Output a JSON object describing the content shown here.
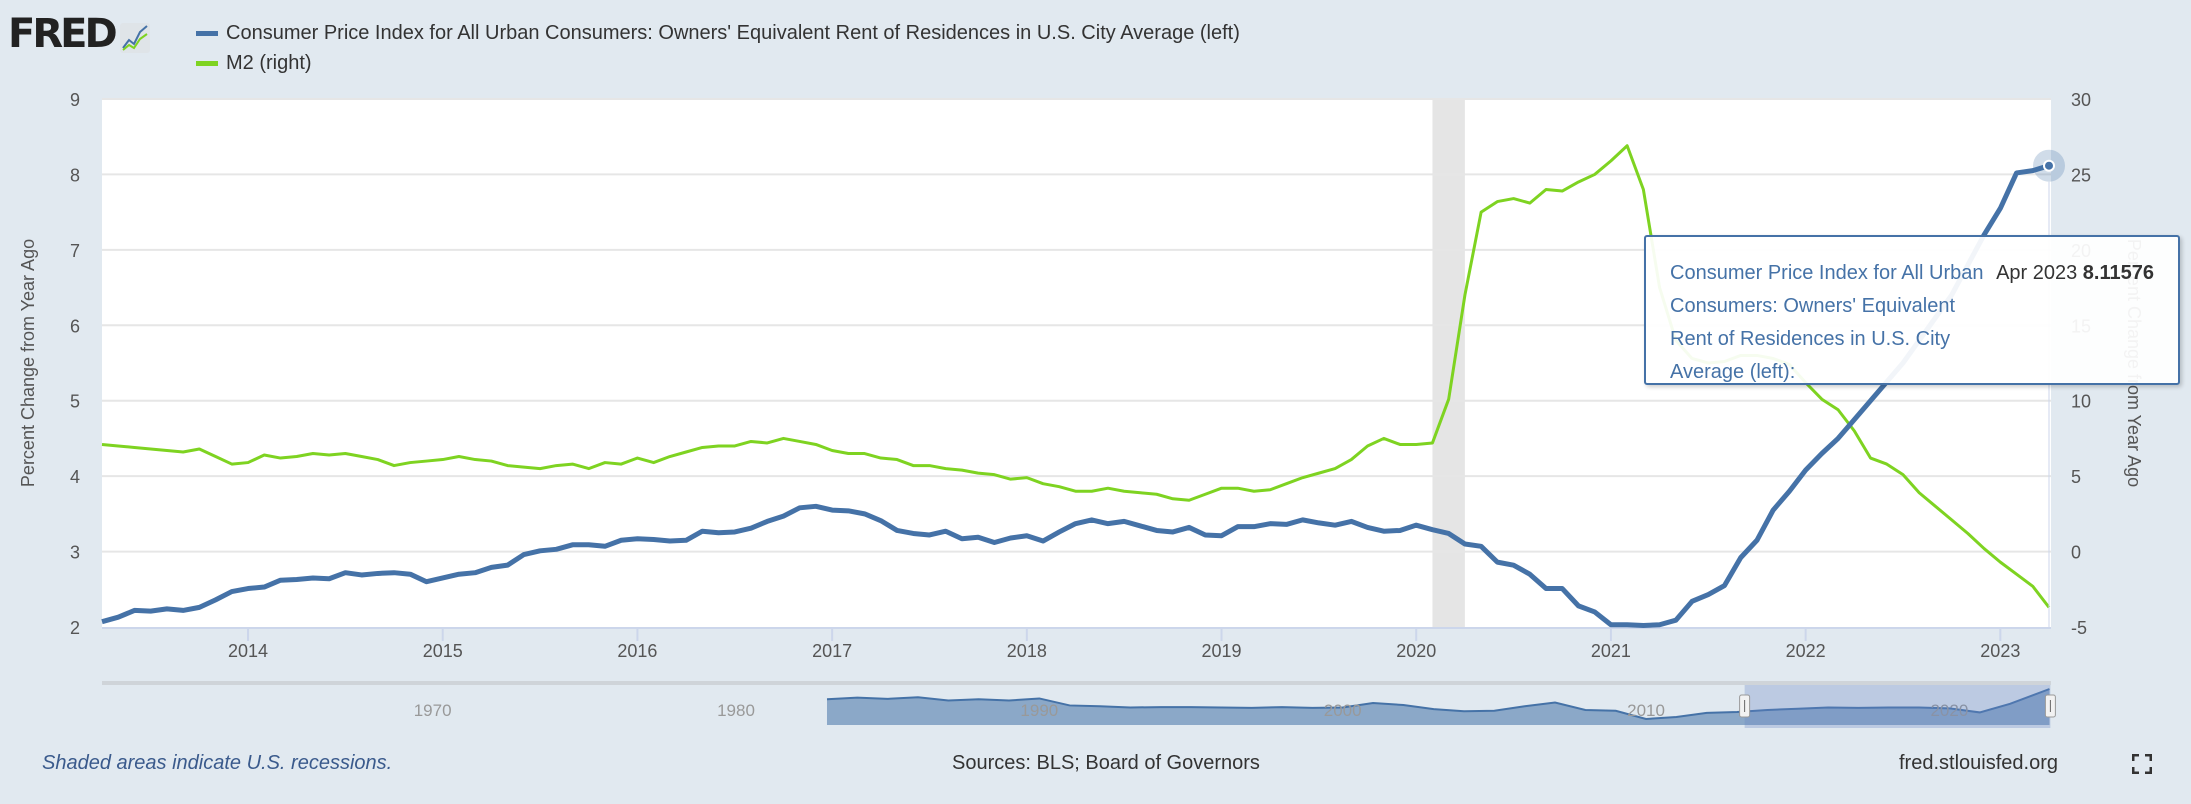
{
  "header": {
    "logo_text": "FRED",
    "legend": [
      {
        "label": "Consumer Price Index for All Urban Consumers: Owners' Equivalent Rent of Residences in U.S. City Average (left)",
        "color": "#4572a7"
      },
      {
        "label": "M2 (right)",
        "color": "#7ed321"
      }
    ]
  },
  "tooltip": {
    "series_name": "Consumer Price Index for All Urban Consumers: Owners' Equivalent Rent of Residences in U.S. City Average (left):",
    "date": "Apr 2023",
    "value": "8.11576"
  },
  "footer": {
    "recession_note": "Shaded areas indicate U.S. recessions.",
    "sources": "Sources: BLS; Board of Governors",
    "site": "fred.stlouisfed.org",
    "fullscreen_icon": "fullscreen-icon"
  },
  "chart_data": {
    "type": "line",
    "x_start": "2013-04",
    "x_end": "2023-04",
    "frequency": "monthly",
    "x_tick_labels": [
      "2014",
      "2015",
      "2016",
      "2017",
      "2018",
      "2019",
      "2020",
      "2021",
      "2022",
      "2023"
    ],
    "y_left": {
      "label": "Percent Change from Year Ago",
      "ylim": [
        2,
        9
      ],
      "ticks": [
        "2",
        "3",
        "4",
        "5",
        "6",
        "7",
        "8",
        "9"
      ]
    },
    "y_right": {
      "label": "Percent Change from Year Ago",
      "ylim": [
        -5,
        30
      ],
      "ticks": [
        "-5",
        "0",
        "5",
        "10",
        "15",
        "20",
        "25",
        "30"
      ]
    },
    "grid": true,
    "legend_position": "top-left",
    "recessions": [
      [
        "2020-02",
        "2020-04"
      ]
    ],
    "series": [
      {
        "name": "Consumer Price Index for All Urban Consumers: Owners' Equivalent Rent of Residences in U.S. City Average (left)",
        "axis": "left",
        "color": "#4572a7",
        "values": [
          2.07,
          2.13,
          2.22,
          2.21,
          2.24,
          2.22,
          2.26,
          2.36,
          2.47,
          2.51,
          2.53,
          2.62,
          2.63,
          2.65,
          2.64,
          2.72,
          2.69,
          2.71,
          2.72,
          2.7,
          2.6,
          2.65,
          2.7,
          2.72,
          2.79,
          2.82,
          2.96,
          3.01,
          3.03,
          3.09,
          3.09,
          3.07,
          3.15,
          3.17,
          3.16,
          3.14,
          3.15,
          3.27,
          3.25,
          3.26,
          3.31,
          3.4,
          3.47,
          3.58,
          3.6,
          3.55,
          3.54,
          3.5,
          3.41,
          3.28,
          3.24,
          3.22,
          3.27,
          3.17,
          3.19,
          3.12,
          3.18,
          3.21,
          3.14,
          3.26,
          3.37,
          3.42,
          3.37,
          3.4,
          3.34,
          3.28,
          3.26,
          3.32,
          3.22,
          3.21,
          3.33,
          3.33,
          3.37,
          3.36,
          3.42,
          3.38,
          3.35,
          3.4,
          3.32,
          3.27,
          3.28,
          3.35,
          3.29,
          3.24,
          3.1,
          3.07,
          2.86,
          2.82,
          2.7,
          2.51,
          2.51,
          2.28,
          2.2,
          2.03,
          2.03,
          2.02,
          2.03,
          2.09,
          2.34,
          2.43,
          2.55,
          2.92,
          3.15,
          3.55,
          3.8,
          4.08,
          4.3,
          4.5,
          4.75,
          5.0,
          5.25,
          5.5,
          5.8,
          6.1,
          6.4,
          6.8,
          7.2,
          7.55,
          8.02,
          8.05,
          8.11576
        ]
      },
      {
        "name": "M2 (right)",
        "axis": "right",
        "color": "#7ed321",
        "values": [
          7.1,
          7.0,
          6.9,
          6.8,
          6.7,
          6.6,
          6.8,
          6.3,
          5.8,
          5.9,
          6.4,
          6.2,
          6.3,
          6.5,
          6.4,
          6.5,
          6.3,
          6.1,
          5.7,
          5.9,
          6.0,
          6.1,
          6.3,
          6.1,
          6.0,
          5.7,
          5.6,
          5.5,
          5.7,
          5.8,
          5.5,
          5.9,
          5.8,
          6.2,
          5.9,
          6.3,
          6.6,
          6.9,
          7.0,
          7.0,
          7.3,
          7.2,
          7.5,
          7.3,
          7.1,
          6.7,
          6.5,
          6.5,
          6.2,
          6.1,
          5.7,
          5.7,
          5.5,
          5.4,
          5.2,
          5.1,
          4.8,
          4.9,
          4.5,
          4.3,
          4.0,
          4.0,
          4.2,
          4.0,
          3.9,
          3.8,
          3.5,
          3.4,
          3.8,
          4.2,
          4.2,
          4.0,
          4.1,
          4.5,
          4.9,
          5.2,
          5.5,
          6.1,
          7.0,
          7.5,
          7.1,
          7.1,
          7.2,
          10.1,
          17.0,
          22.5,
          23.2,
          23.4,
          23.1,
          24.0,
          23.9,
          24.5,
          25.0,
          25.9,
          26.9,
          24.0,
          17.5,
          14.0,
          12.8,
          12.5,
          12.6,
          13.0,
          13.0,
          12.8,
          12.4,
          11.2,
          10.1,
          9.4,
          8.0,
          6.2,
          5.8,
          5.1,
          3.9,
          3.0,
          2.1,
          1.2,
          0.2,
          -0.7,
          -1.5,
          -2.3,
          -3.7
        ]
      }
    ],
    "navigator": {
      "x_tick_labels": [
        "1970",
        "1980",
        "1990",
        "2000",
        "2010",
        "2020"
      ],
      "series_start_year": 1983,
      "annual_values": [
        5.3,
        5.7,
        5.4,
        5.8,
        5.0,
        5.3,
        5.0,
        5.5,
        3.8,
        3.6,
        3.3,
        3.4,
        3.4,
        3.3,
        3.2,
        3.4,
        3.2,
        3.3,
        4.4,
        3.9,
        2.9,
        2.4,
        2.5,
        3.6,
        4.5,
        2.7,
        2.5,
        0.5,
        1.0,
        2.0,
        2.2,
        2.7,
        3.0,
        3.3,
        3.2,
        3.3,
        3.3,
        3.1,
        2.1,
        4.2,
        7.8
      ],
      "selected_range": [
        "2013-04",
        "2023-04"
      ]
    }
  }
}
